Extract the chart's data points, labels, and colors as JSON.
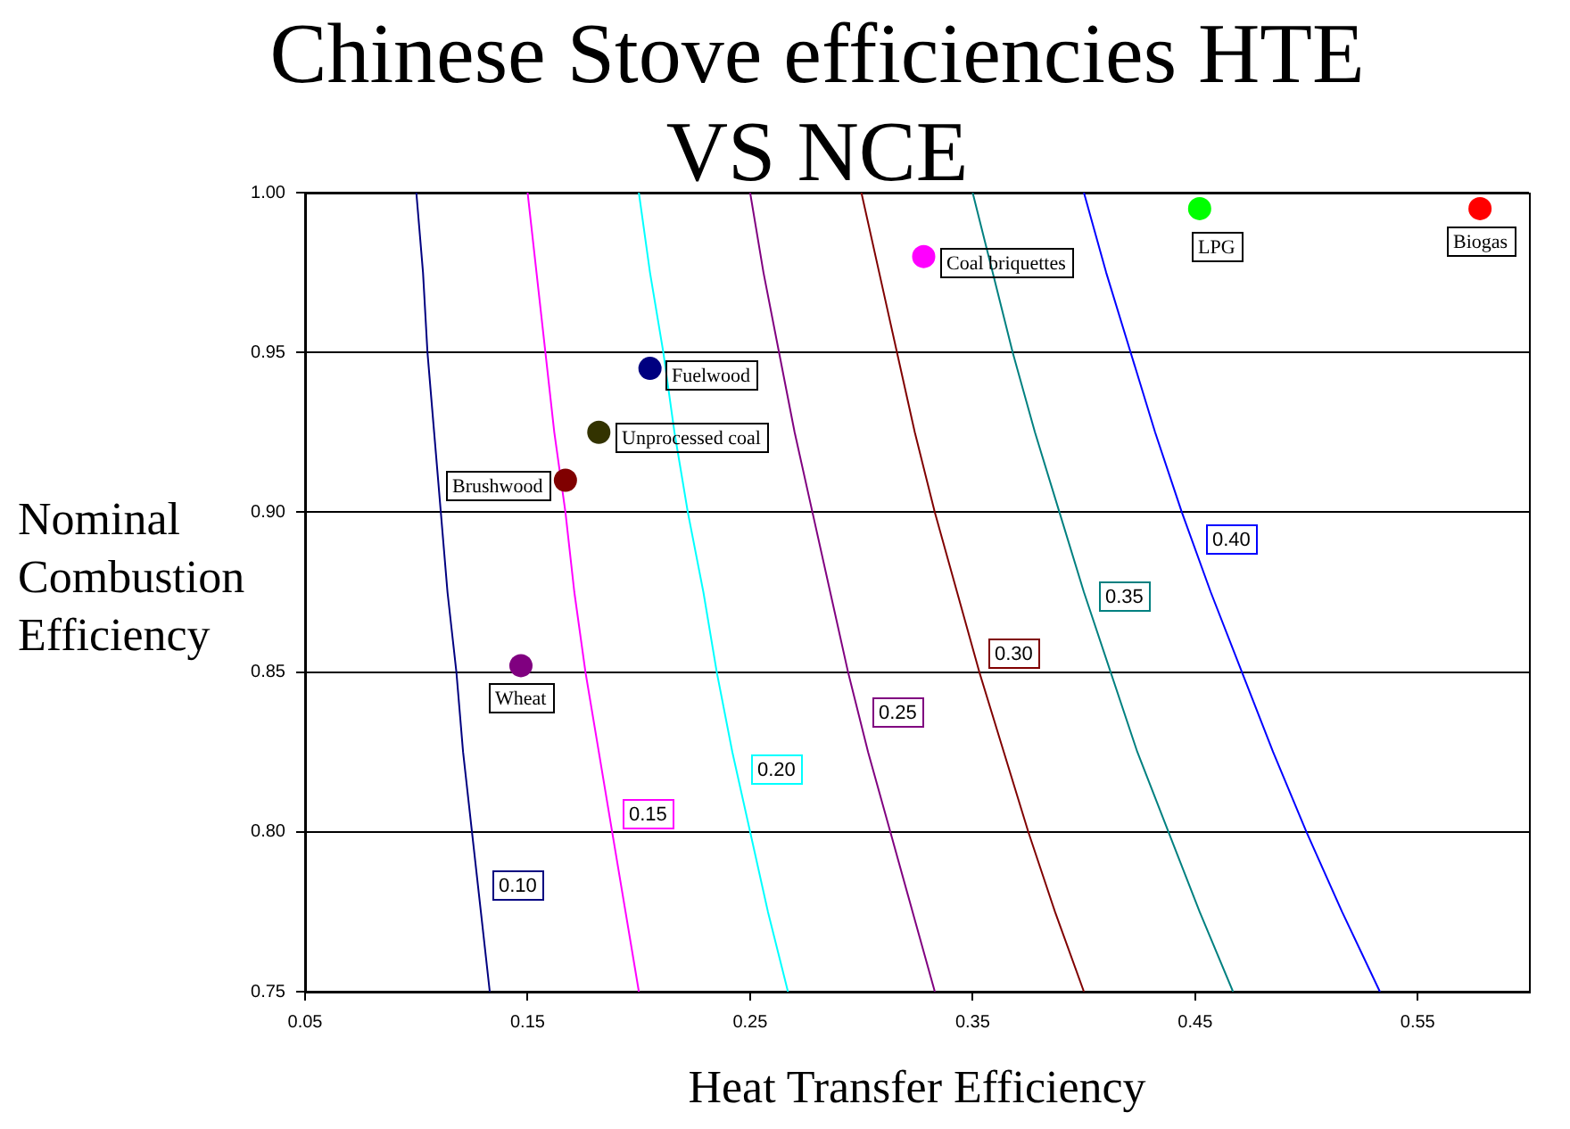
{
  "chart_data": {
    "type": "scatter",
    "title": "Chinese Stove efficiencies HTE VS NCE",
    "xlabel": "Heat Transfer Efficiency",
    "ylabel": "Nominal Combustion Efficiency",
    "xlim": [
      0.05,
      0.6
    ],
    "xticks": [
      0.05,
      0.15,
      0.25,
      0.35,
      0.45,
      0.55
    ],
    "ylim": [
      0.75,
      1.0
    ],
    "yticks": [
      0.75,
      {
        "value": 0.8,
        "label": "0.80"
      },
      0.85,
      {
        "value": 0.9,
        "label": "0.90"
      },
      0.95,
      {
        "value": 1.0,
        "label": "1.00"
      }
    ],
    "grid": "y",
    "legend": false,
    "marker": "circle",
    "series": [
      {
        "name": "Fuelwood",
        "color": "#000080",
        "x": [
          0.205
        ],
        "values": [
          0.945
        ]
      },
      {
        "name": "Unprocessed coal",
        "color": "#333300",
        "x": [
          0.182
        ],
        "values": [
          0.925
        ]
      },
      {
        "name": "Brushwood",
        "color": "#800000",
        "x": [
          0.167
        ],
        "values": [
          0.91
        ]
      },
      {
        "name": "Wheat",
        "color": "#800080",
        "x": [
          0.147
        ],
        "values": [
          0.852
        ]
      },
      {
        "name": "Coal briquettes",
        "color": "#ff00ff",
        "x": [
          0.328
        ],
        "values": [
          0.98
        ]
      },
      {
        "name": "LPG",
        "color": "#00ff00",
        "x": [
          0.452
        ],
        "values": [
          0.995
        ]
      },
      {
        "name": "Biogas",
        "color": "#ff0000",
        "x": [
          0.578
        ],
        "values": [
          0.995
        ]
      },
      {
        "name": "0.10",
        "type": "line",
        "marker": "none",
        "color": "#000080",
        "x": [
          0.1,
          0.103,
          0.105,
          0.108,
          0.111,
          0.114,
          0.118,
          0.121,
          0.125,
          0.129,
          0.133
        ],
        "values": [
          1.0,
          0.975,
          0.95,
          0.925,
          0.9,
          0.875,
          0.85,
          0.825,
          0.8,
          0.775,
          0.75
        ]
      },
      {
        "name": "0.15",
        "type": "line",
        "marker": "none",
        "color": "#ff00ff",
        "x": [
          0.15,
          0.154,
          0.158,
          0.162,
          0.167,
          0.171,
          0.176,
          0.182,
          0.188,
          0.194,
          0.2
        ],
        "values": [
          1.0,
          0.975,
          0.95,
          0.925,
          0.9,
          0.875,
          0.85,
          0.825,
          0.8,
          0.775,
          0.75
        ]
      },
      {
        "name": "0.20",
        "type": "line",
        "marker": "none",
        "color": "#00ffff",
        "x": [
          0.2,
          0.205,
          0.211,
          0.216,
          0.222,
          0.229,
          0.235,
          0.242,
          0.25,
          0.258,
          0.267
        ],
        "values": [
          1.0,
          0.975,
          0.95,
          0.925,
          0.9,
          0.875,
          0.85,
          0.825,
          0.8,
          0.775,
          0.75
        ]
      },
      {
        "name": "0.25",
        "type": "line",
        "marker": "none",
        "color": "#800080",
        "x": [
          0.25,
          0.256,
          0.263,
          0.27,
          0.278,
          0.286,
          0.294,
          0.303,
          0.313,
          0.323,
          0.333
        ],
        "values": [
          1.0,
          0.975,
          0.95,
          0.925,
          0.9,
          0.875,
          0.85,
          0.825,
          0.8,
          0.775,
          0.75
        ]
      },
      {
        "name": "0.30",
        "type": "line",
        "marker": "none",
        "color": "#800000",
        "x": [
          0.3,
          0.308,
          0.316,
          0.324,
          0.333,
          0.343,
          0.353,
          0.364,
          0.375,
          0.387,
          0.4
        ],
        "values": [
          1.0,
          0.975,
          0.95,
          0.925,
          0.9,
          0.875,
          0.85,
          0.825,
          0.8,
          0.775,
          0.75
        ]
      },
      {
        "name": "0.35",
        "type": "line",
        "marker": "none",
        "color": "#008080",
        "x": [
          0.35,
          0.359,
          0.368,
          0.378,
          0.389,
          0.4,
          0.412,
          0.424,
          0.438,
          0.452,
          0.467
        ],
        "values": [
          1.0,
          0.975,
          0.95,
          0.925,
          0.9,
          0.875,
          0.85,
          0.825,
          0.8,
          0.775,
          0.75
        ]
      },
      {
        "name": "0.40",
        "type": "line",
        "marker": "none",
        "color": "#0000ff",
        "x": [
          0.4,
          0.41,
          0.421,
          0.432,
          0.444,
          0.457,
          0.471,
          0.485,
          0.5,
          0.516,
          0.533
        ],
        "values": [
          1.0,
          0.975,
          0.95,
          0.925,
          0.9,
          0.875,
          0.85,
          0.825,
          0.8,
          0.775,
          0.75
        ]
      }
    ]
  }
}
